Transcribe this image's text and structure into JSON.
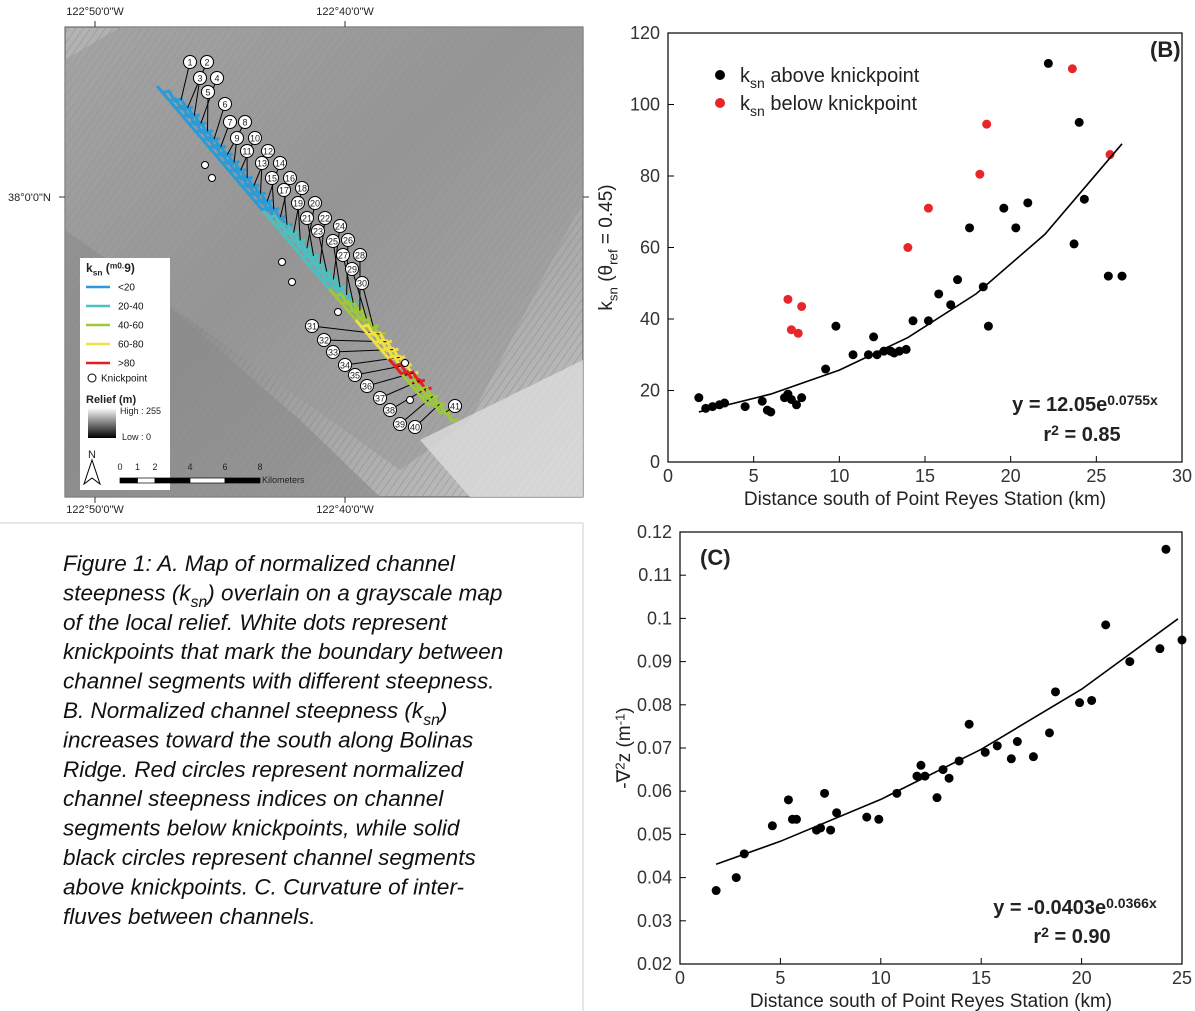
{
  "map": {
    "lon_labels": [
      "122°50'0\"W",
      "122°40'0\"W"
    ],
    "lat_label": "38°0'0\"N",
    "channel_labels": [
      1,
      2,
      3,
      4,
      5,
      6,
      7,
      8,
      9,
      10,
      11,
      12,
      13,
      14,
      15,
      16,
      17,
      18,
      19,
      20,
      21,
      22,
      23,
      24,
      25,
      26,
      27,
      28,
      29,
      30,
      31,
      32,
      33,
      34,
      35,
      36,
      37,
      38,
      39,
      40,
      41
    ],
    "legend": {
      "title": "ksn (m0.9)",
      "items": [
        {
          "label": "<20",
          "color": "#2b9bd8"
        },
        {
          "label": "20-40",
          "color": "#4cc0c0"
        },
        {
          "label": "40-60",
          "color": "#9cc83a"
        },
        {
          "label": "60-80",
          "color": "#f0e040"
        },
        {
          "label": ">80",
          "color": "#e02020"
        }
      ],
      "knickpoint": "Knickpoint",
      "relief_title": "Relief (m)",
      "relief_high": "High : 255",
      "relief_low": "Low : 0"
    },
    "north": "N",
    "scale_bar": {
      "ticks": [
        0,
        1,
        2,
        4,
        6,
        8
      ],
      "unit": "Kilometers"
    }
  },
  "caption": [
    "Figure 1: A. Map of normalized channel",
    "steepness (ksn) overlain on a grayscale map",
    "of the local relief.  White dots represent",
    "knickpoints that mark the boundary between",
    "channel segments with different steepness.",
    "B. Normalized channel steepness (ksn)",
    "increases toward the south along Bolinas",
    "Ridge. Red circles represent normalized",
    "channel steepness indices on channel",
    "segments below knickpoints, while solid",
    "black circles represent channel segments",
    "above knickpoints. C. Curvature of inter-",
    "fluves between channels."
  ],
  "chart_data": [
    {
      "type": "scatter",
      "panel_label": "(B)",
      "x_label": "Distance south of Point Reyes Station (km)",
      "y_label": "ksn (θref = 0.45)",
      "xlim": [
        0,
        30
      ],
      "xticks": [
        0,
        5,
        10,
        15,
        20,
        25,
        30
      ],
      "ylim": [
        0,
        120
      ],
      "yticks": [
        0,
        20,
        40,
        60,
        80,
        100,
        120
      ],
      "equation": "y = 12.05e0.0755x",
      "r_squared": "r2 = 0.85",
      "legend": "upper left",
      "series": [
        {
          "name": "ksn above knickpoint",
          "color": "#000000",
          "mode": "markers",
          "x": [
            1.8,
            2.2,
            2.6,
            3,
            3.3,
            4.5,
            5.5,
            5.8,
            6,
            6.8,
            7,
            7.2,
            7.5,
            7.8,
            9.2,
            9.8,
            10.8,
            11.7,
            12,
            12.2,
            12.6,
            13,
            13.2,
            13.5,
            13.9,
            14.3,
            15.2,
            15.8,
            16.5,
            16.9,
            17.6,
            18.4,
            18.7,
            19.6,
            20.3,
            21,
            22.2,
            23.7,
            24,
            24.3,
            25.7,
            26.5
          ],
          "values": [
            18,
            15,
            15.5,
            16,
            16.5,
            15.5,
            17,
            14.5,
            14,
            18,
            19,
            17.5,
            16,
            18,
            26,
            38,
            30,
            30,
            35,
            30,
            31,
            31,
            30.5,
            31,
            31.5,
            39.5,
            39.5,
            47,
            44,
            51,
            65.5,
            49,
            38,
            71,
            65.5,
            72.5,
            111.5,
            61,
            95,
            73.5,
            52,
            52
          ]
        },
        {
          "name": "ksn below knickpoint",
          "color": "#e8262a",
          "mode": "markers",
          "x": [
            7,
            7.2,
            7.6,
            7.8,
            14,
            15.2,
            18.2,
            18.6,
            23.6,
            25.8
          ],
          "values": [
            45.5,
            37,
            36,
            43.5,
            60,
            71,
            80.5,
            94.5,
            110,
            86
          ]
        },
        {
          "color": "#000000",
          "mode": "line",
          "x": [
            1.8,
            6,
            10,
            14,
            18,
            22,
            26.5
          ],
          "values": [
            14.0,
            19.0,
            25.7,
            34.8,
            47.1,
            63.7,
            89.0
          ]
        }
      ]
    },
    {
      "type": "scatter",
      "panel_label": "(C)",
      "x_label": "Distance south of Point Reyes Station (km)",
      "y_label": "-∇2z (m-1)",
      "xlim": [
        0,
        25
      ],
      "xticks": [
        0,
        5,
        10,
        15,
        20,
        25
      ],
      "ylim": [
        0.02,
        0.12
      ],
      "yticks": [
        0.02,
        0.03,
        0.04,
        0.05,
        0.06,
        0.07,
        0.08,
        0.09,
        0.1,
        0.11,
        0.12
      ],
      "equation": "y = -0.0403e0.0366x",
      "r_squared": "r2 = 0.90",
      "series": [
        {
          "color": "#000000",
          "mode": "markers",
          "x": [
            1.8,
            2.8,
            3.2,
            4.6,
            5.4,
            5.6,
            5.8,
            6.8,
            7,
            7.2,
            7.5,
            7.8,
            9.3,
            9.9,
            10.8,
            11.8,
            12,
            12.2,
            12.8,
            13.1,
            13.4,
            13.9,
            14.4,
            15.2,
            15.8,
            16.5,
            16.8,
            17.6,
            18.4,
            18.7,
            19.9,
            20.5,
            21.2,
            22.4,
            23.9,
            24.2,
            25
          ],
          "values": [
            0.037,
            0.04,
            0.0455,
            0.052,
            0.058,
            0.0535,
            0.0535,
            0.051,
            0.0515,
            0.0595,
            0.051,
            0.055,
            0.054,
            0.0535,
            0.0595,
            0.0635,
            0.066,
            0.0635,
            0.0585,
            0.065,
            0.063,
            0.067,
            0.0755,
            0.069,
            0.0705,
            0.0675,
            0.0715,
            0.068,
            0.0735,
            0.083,
            0.0805,
            0.081,
            0.0985,
            0.09,
            0.093,
            0.116,
            0.095
          ]
        },
        {
          "color": "#000000",
          "mode": "line",
          "x": [
            1.8,
            5,
            10,
            15,
            20,
            24.8
          ],
          "values": [
            0.0431,
            0.0484,
            0.0581,
            0.0697,
            0.0836,
            0.0999
          ]
        }
      ]
    }
  ]
}
